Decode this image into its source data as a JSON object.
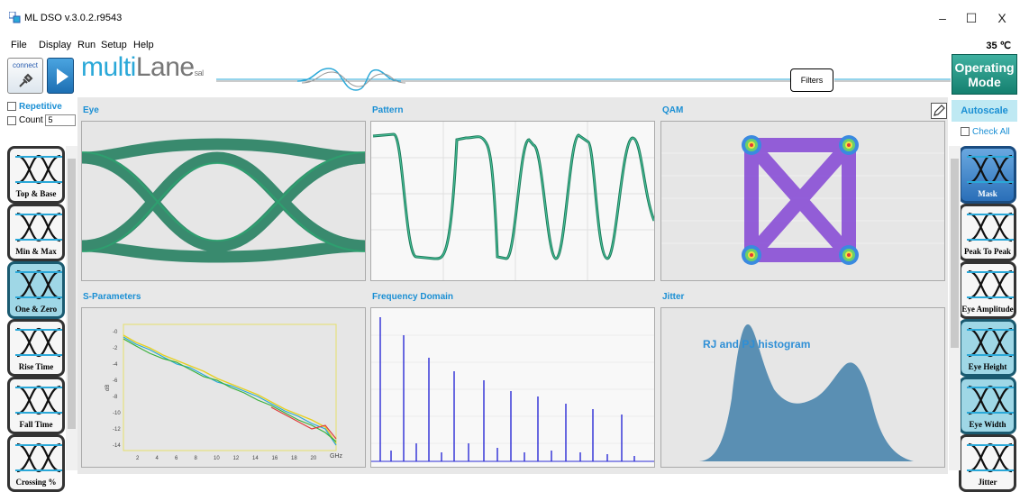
{
  "window": {
    "title": "ML DSO v.3.0.2.r9543",
    "minimize": "–",
    "maximize": "☐",
    "close": "X"
  },
  "menu": {
    "items": [
      "File",
      "Display",
      "Run",
      "Setup",
      "Help"
    ]
  },
  "temperature": "35 ℃",
  "toolbar": {
    "connect_label": "connect",
    "filters_label": "Filters",
    "operating_mode_line1": "Operating",
    "operating_mode_line2": "Mode"
  },
  "logo": {
    "main": "multi",
    "bold": "Lane",
    "suffix": "sal"
  },
  "left_panel": {
    "repetitive_label": "Repetitive",
    "count_label": "Count",
    "count_value": "5",
    "measurements": [
      {
        "label": "Top & Base",
        "selected": false
      },
      {
        "label": "Min & Max",
        "selected": false
      },
      {
        "label": "One & Zero",
        "selected": true
      },
      {
        "label": "Rise Time",
        "selected": false
      },
      {
        "label": "Fall Time",
        "selected": false
      },
      {
        "label": "Crossing %",
        "selected": false
      }
    ]
  },
  "right_panel": {
    "autoscale_label": "Autoscale",
    "check_all_label": "Check All",
    "measurements": [
      {
        "label": "Mask",
        "selected": true
      },
      {
        "label": "Peak To Peak",
        "selected": false
      },
      {
        "label": "Eye Amplitude",
        "selected": false
      },
      {
        "label": "Eye Height",
        "selected": true
      },
      {
        "label": "Eye Width",
        "selected": true
      },
      {
        "label": "Jitter",
        "selected": false
      }
    ]
  },
  "panels": {
    "eye": "Eye",
    "pattern": "Pattern",
    "qam": "QAM",
    "s_parameters": "S-Parameters",
    "frequency_domain": "Frequency Domain",
    "jitter": "Jitter",
    "jitter_annotation": "RJ and PJ histogram"
  },
  "s_params_chart": {
    "y_label": "dB",
    "x_unit": "GHz",
    "y_ticks": [
      "-0",
      "-2",
      "-4",
      "-6",
      "-8",
      "-10",
      "-12",
      "-14"
    ],
    "x_ticks": [
      "2",
      "4",
      "6",
      "8",
      "10",
      "12",
      "14",
      "16",
      "18",
      "20"
    ]
  },
  "colors": {
    "accent": "#1a8fd4",
    "eye_trace": "#1c7a5a",
    "qam": "#8a4fd6",
    "freq": "#2a2ad6",
    "jitter": "#5a8fb3"
  }
}
